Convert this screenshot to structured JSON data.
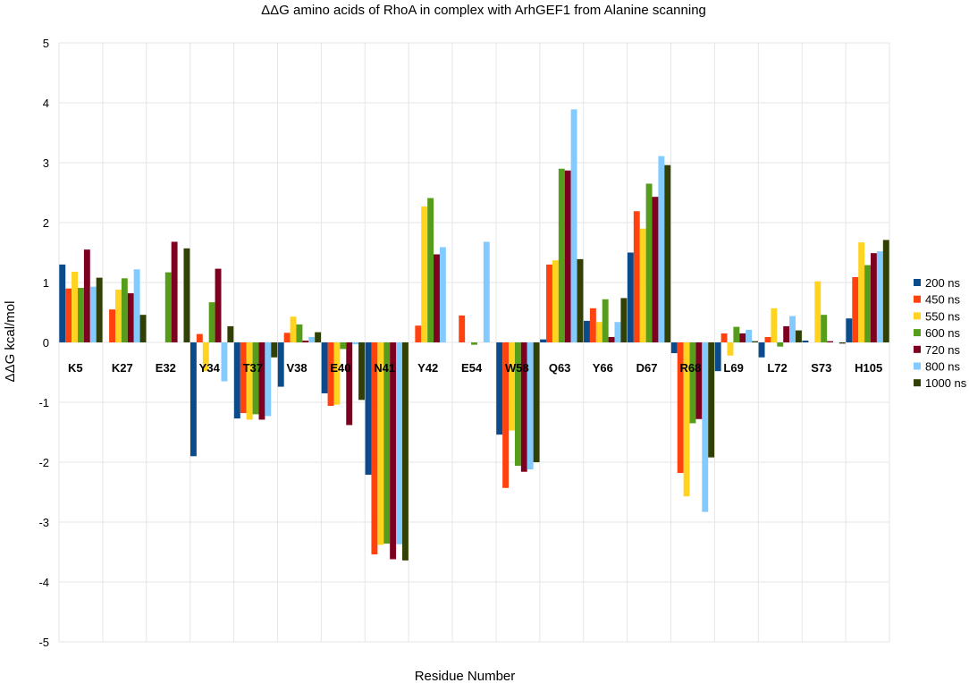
{
  "chart_data": {
    "type": "bar",
    "title": "ΔΔG amino acids of RhoA in complex with ArhGEF1 from Alanine scanning",
    "xlabel": "Residue Number",
    "ylabel": "ΔΔG kcal/mol",
    "ylim": [
      -5,
      5
    ],
    "yticks": [
      -5,
      -4,
      -3,
      -2,
      -1,
      0,
      1,
      2,
      3,
      4,
      5
    ],
    "grid": true,
    "legend_position": "right",
    "categories": [
      "K5",
      "K27",
      "E32",
      "Y34",
      "T37",
      "V38",
      "E40",
      "N41",
      "Y42",
      "E54",
      "W58",
      "Q63",
      "Y66",
      "D67",
      "R68",
      "L69",
      "L72",
      "S73",
      "H105"
    ],
    "series": [
      {
        "name": "200 ns",
        "color": "#0b4a8b",
        "values": [
          1.3,
          0,
          0,
          -1.9,
          -1.27,
          -0.74,
          -0.85,
          -2.21,
          0,
          0,
          -1.54,
          0.05,
          0.36,
          1.5,
          -0.18,
          -0.48,
          -0.25,
          0.03,
          0.4
        ]
      },
      {
        "name": "450 ns",
        "color": "#ff420e",
        "values": [
          0.9,
          0.55,
          0,
          0.14,
          -1.18,
          0.16,
          -1.06,
          -3.54,
          0.28,
          0.45,
          -2.43,
          1.3,
          0.57,
          2.19,
          -2.18,
          0.15,
          0.09,
          0,
          1.09
        ]
      },
      {
        "name": "550 ns",
        "color": "#ffd320",
        "values": [
          1.18,
          0.88,
          0,
          -0.48,
          -1.29,
          0.43,
          -1.04,
          -3.38,
          2.27,
          0,
          -1.47,
          1.37,
          0.34,
          1.9,
          -2.57,
          -0.22,
          0.57,
          1.02,
          1.67
        ]
      },
      {
        "name": "600 ns",
        "color": "#579d1c",
        "values": [
          0.91,
          1.07,
          1.17,
          0.67,
          -1.2,
          0.3,
          -0.11,
          -3.36,
          2.41,
          -0.04,
          -2.06,
          2.9,
          0.72,
          2.65,
          -1.35,
          0.26,
          -0.07,
          0.46,
          1.29
        ]
      },
      {
        "name": "720 ns",
        "color": "#7e0021",
        "values": [
          1.55,
          0.82,
          1.68,
          1.23,
          -1.29,
          0.03,
          -1.38,
          -3.62,
          1.47,
          0,
          -2.16,
          2.87,
          0.09,
          2.43,
          -1.28,
          0.15,
          0.27,
          0.02,
          1.49
        ]
      },
      {
        "name": "800 ns",
        "color": "#83caff",
        "values": [
          0.93,
          1.22,
          0,
          -0.65,
          -1.23,
          0.09,
          -0.03,
          -3.37,
          1.59,
          1.68,
          -2.12,
          3.89,
          0.34,
          3.11,
          -2.83,
          0.21,
          0.44,
          0,
          1.52
        ]
      },
      {
        "name": "1000 ns",
        "color": "#314004",
        "values": [
          1.08,
          0.46,
          1.57,
          0.27,
          -0.25,
          0.17,
          -0.96,
          -3.64,
          0,
          0,
          -2.0,
          1.39,
          0.74,
          2.96,
          -1.92,
          0.02,
          0.2,
          -0.02,
          1.71
        ]
      }
    ]
  }
}
